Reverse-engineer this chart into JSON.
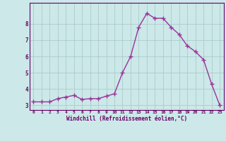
{
  "x": [
    0,
    1,
    2,
    3,
    4,
    5,
    6,
    7,
    8,
    9,
    10,
    11,
    12,
    13,
    14,
    15,
    16,
    17,
    18,
    19,
    20,
    21,
    22,
    23
  ],
  "y": [
    3.2,
    3.2,
    3.2,
    3.4,
    3.5,
    3.6,
    3.35,
    3.4,
    3.4,
    3.55,
    3.7,
    5.0,
    6.0,
    7.8,
    8.65,
    8.35,
    8.35,
    7.8,
    7.35,
    6.65,
    6.3,
    5.8,
    4.3,
    3.0
  ],
  "line_color": "#993399",
  "marker": "+",
  "bg_color": "#cce8e8",
  "grid_color": "#aacccc",
  "xlabel": "Windchill (Refroidissement éolien,°C)",
  "xlabel_color": "#660066",
  "tick_color": "#660066",
  "ylabel_ticks": [
    3,
    4,
    5,
    6,
    7,
    8
  ],
  "xlim": [
    -0.5,
    23.5
  ],
  "ylim": [
    2.7,
    9.3
  ],
  "figsize": [
    3.2,
    2.0
  ],
  "dpi": 100
}
